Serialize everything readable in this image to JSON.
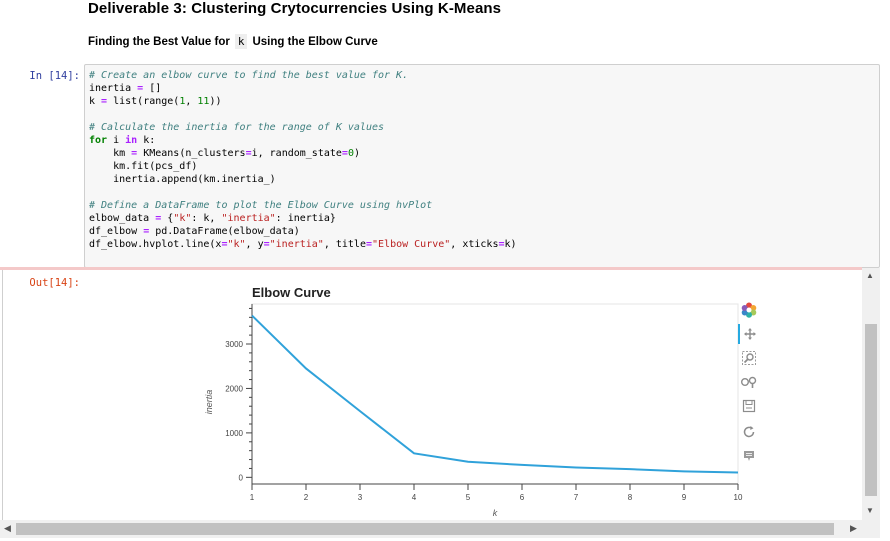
{
  "markdown": {
    "heading": "Deliverable 3: Clustering Crytocurrencies Using K-Means",
    "subheading_before": "Finding the Best Value for",
    "subheading_code": "k",
    "subheading_after": "Using the Elbow Curve"
  },
  "input_cell": {
    "prompt": "In [14]:",
    "lines": [
      "# Create an elbow curve to find the best value for K.",
      "inertia = []",
      "k = list(range(1, 11))",
      "",
      "# Calculate the inertia for the range of K values",
      "for i in k:",
      "    km = KMeans(n_clusters=i, random_state=0)",
      "    km.fit(pcs_df)",
      "    inertia.append(km.inertia_)",
      "",
      "# Define a DataFrame to plot the Elbow Curve using hvPlot",
      "elbow_data = {\"k\": k, \"inertia\": inertia}",
      "df_elbow = pd.DataFrame(elbow_data)",
      "df_elbow.hvplot.line(x=\"k\", y=\"inertia\", title=\"Elbow Curve\", xticks=k)"
    ]
  },
  "output_cell": {
    "prompt": "Out[14]:"
  },
  "toolbar_icons": [
    "bokeh-logo-icon",
    "pan-icon",
    "box-zoom-icon",
    "wheel-zoom-icon",
    "save-icon",
    "reset-icon",
    "hover-icon"
  ],
  "chart_data": {
    "type": "line",
    "title": "Elbow Curve",
    "xlabel": "k",
    "ylabel": "inertia",
    "x": [
      1,
      2,
      3,
      4,
      5,
      6,
      7,
      8,
      9,
      10
    ],
    "series": [
      {
        "values": [
          3640,
          2450,
          1490,
          540,
          350,
          280,
          220,
          185,
          135,
          110
        ],
        "color": "#30a2da"
      }
    ],
    "xticks": [
      "1",
      "2",
      "3",
      "4",
      "5",
      "6",
      "7",
      "8",
      "9",
      "10"
    ],
    "yticks": [
      "0",
      "1000",
      "2000",
      "3000"
    ],
    "xlim": [
      1,
      10
    ],
    "ylim": [
      -150,
      3900
    ],
    "grid": false,
    "legend": "none"
  }
}
